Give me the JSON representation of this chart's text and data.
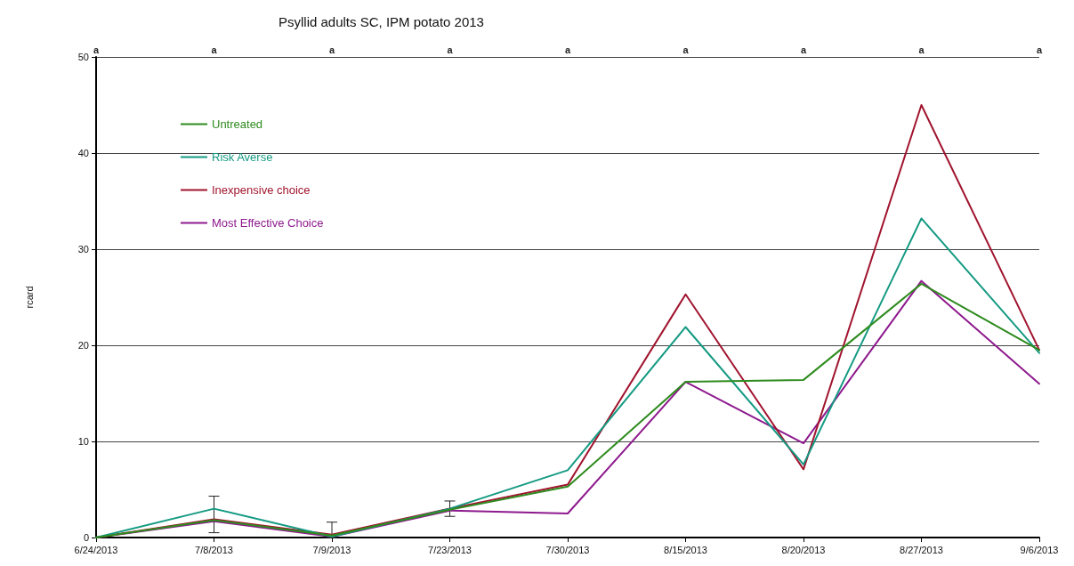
{
  "chart_data": {
    "type": "line",
    "title": "Psyllid adults SC, IPM potato 2013",
    "ylabel": "rcard",
    "categories": [
      "6/24/2013",
      "7/8/2013",
      "7/9/2013",
      "7/23/2013",
      "7/30/2013",
      "8/15/2013",
      "8/20/2013",
      "8/27/2013",
      "9/6/2013"
    ],
    "series": [
      {
        "name": "Untreated",
        "color": "#2e8b1e",
        "values": [
          0,
          1.8,
          0.2,
          2.9,
          5.3,
          16.2,
          16.4,
          26.4,
          19.5
        ],
        "errors": [
          null,
          [
            0.5,
            4.3
          ],
          [
            0,
            1.6
          ],
          [
            2.2,
            3.8
          ],
          null,
          null,
          null,
          null,
          null
        ]
      },
      {
        "name": "Risk Averse",
        "color": "#159a82",
        "values": [
          0,
          3.0,
          0.1,
          3.0,
          7.0,
          21.9,
          7.6,
          33.2,
          19.2
        ]
      },
      {
        "name": "Inexpensive choice",
        "color": "#a0142e",
        "values": [
          0,
          1.9,
          0.3,
          3.0,
          5.5,
          25.3,
          7.1,
          45.0,
          19.5
        ]
      },
      {
        "name": "Most Effective Choice",
        "color": "#8e1a8e",
        "values": [
          0,
          1.7,
          0.1,
          2.8,
          2.5,
          16.2,
          9.8,
          26.7,
          16.0
        ]
      }
    ],
    "annotations": [
      "a",
      "a",
      "a",
      "a",
      "a",
      "a",
      "a",
      "a",
      "a"
    ],
    "ylim": [
      0,
      50
    ],
    "yticks": [
      0,
      10,
      20,
      30,
      40,
      50
    ],
    "grid": "y",
    "legend": "top left",
    "marker": "none",
    "line_style": "solid"
  }
}
